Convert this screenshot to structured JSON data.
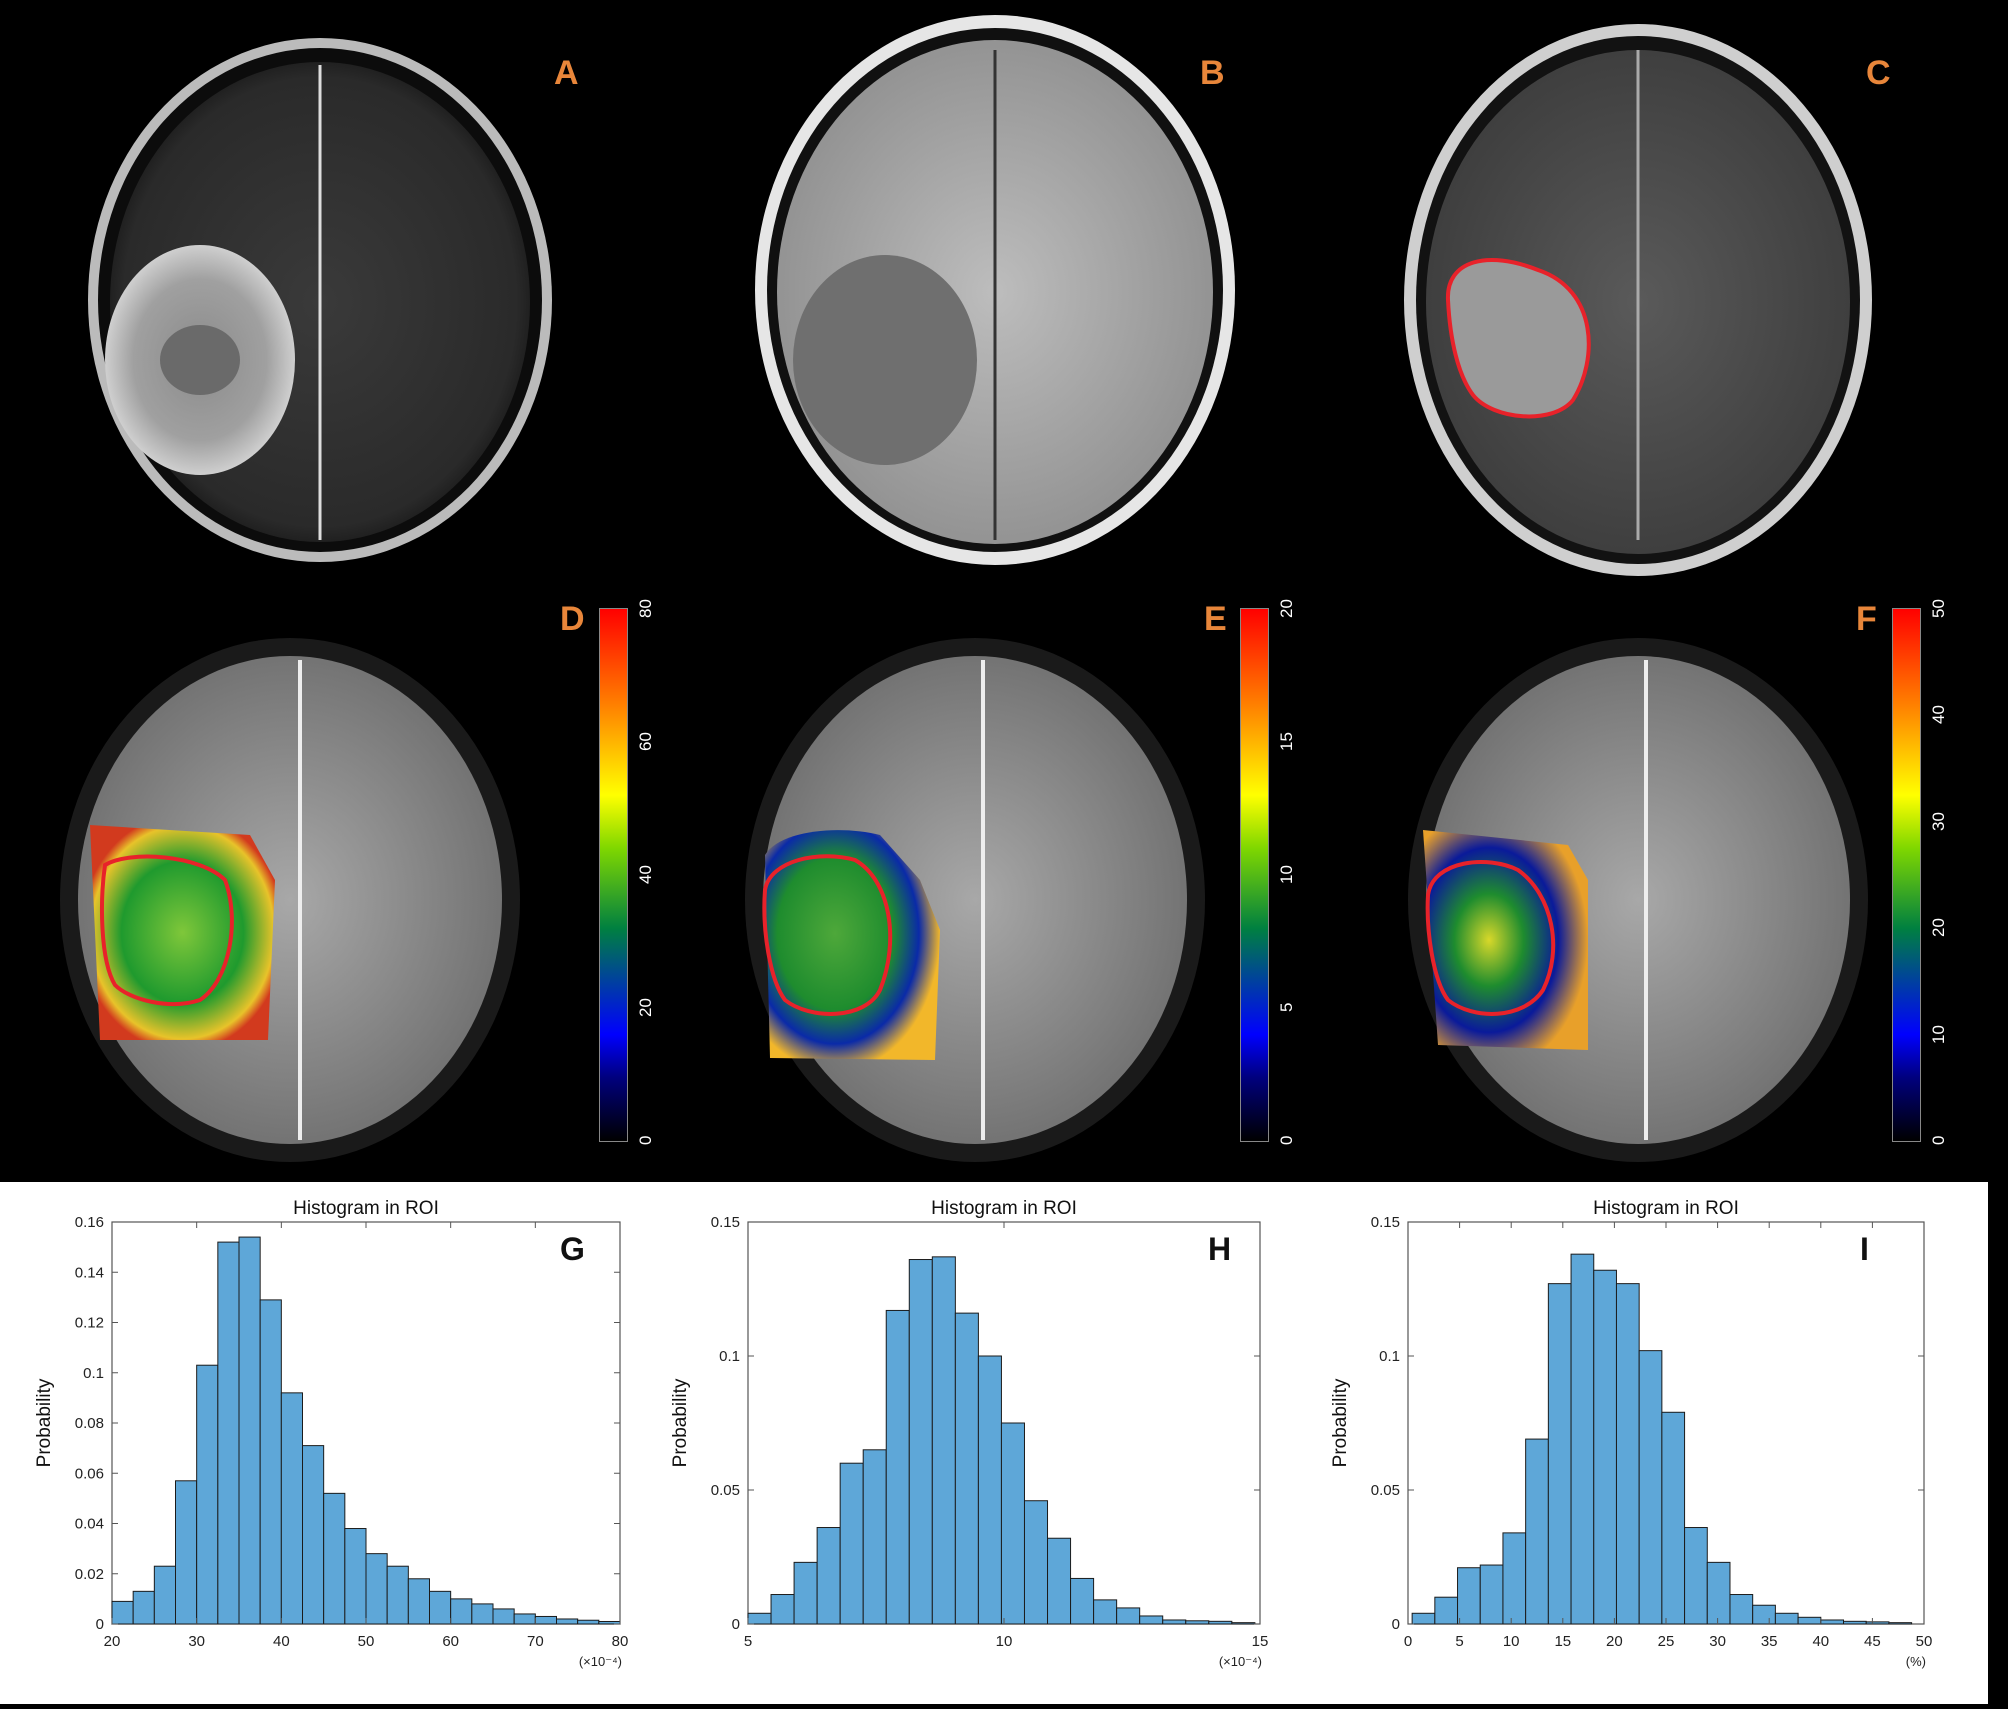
{
  "panels": {
    "A": "A",
    "B": "B",
    "C": "C",
    "D": "D",
    "E": "E",
    "F": "F",
    "G": "G",
    "H": "H",
    "I": "I"
  },
  "colorbars": [
    {
      "panel": "D",
      "ticks": [
        "80",
        "60",
        "40",
        "20",
        "0"
      ]
    },
    {
      "panel": "E",
      "ticks": [
        "20",
        "15",
        "10",
        "5",
        "0"
      ]
    },
    {
      "panel": "F",
      "ticks": [
        "50",
        "40",
        "30",
        "20",
        "10",
        "0"
      ]
    }
  ],
  "colors": {
    "panel_label": "#e8863a",
    "roi_outline": "#e8222a",
    "bar_fill": "#5ea7d8",
    "bar_edge": "#1b1b1b"
  },
  "chart_data": [
    {
      "panel": "G",
      "type": "bar",
      "title": "Histogram in ROI",
      "ylabel": "Probability",
      "xlabel": "",
      "x_unit": "(×10⁻⁴)",
      "xlim": [
        20,
        80
      ],
      "ylim": [
        0,
        0.16
      ],
      "xticks": [
        "20",
        "30",
        "40",
        "50",
        "60",
        "70",
        "80"
      ],
      "yticks": [
        "0",
        "0.02",
        "0.04",
        "0.06",
        "0.08",
        "0.1",
        "0.12",
        "0.14",
        "0.16"
      ],
      "bin_width": 2.5,
      "bin_start": 20,
      "values": [
        0.009,
        0.013,
        0.023,
        0.057,
        0.103,
        0.152,
        0.154,
        0.129,
        0.092,
        0.071,
        0.052,
        0.038,
        0.028,
        0.023,
        0.018,
        0.013,
        0.01,
        0.008,
        0.006,
        0.004,
        0.003,
        0.002,
        0.0015,
        0.001
      ]
    },
    {
      "panel": "H",
      "type": "bar",
      "title": "Histogram in ROI",
      "ylabel": "Probability",
      "xlabel": "",
      "x_unit": "(×10⁻⁴)",
      "xlim": [
        5,
        15
      ],
      "ylim": [
        0,
        0.15
      ],
      "xticks": [
        "5",
        "10",
        "15"
      ],
      "yticks": [
        "0",
        "0.05",
        "0.1",
        "0.15"
      ],
      "bin_width": 0.45,
      "bin_start": 5.0,
      "values": [
        0.004,
        0.011,
        0.023,
        0.036,
        0.06,
        0.065,
        0.117,
        0.136,
        0.137,
        0.116,
        0.1,
        0.075,
        0.046,
        0.032,
        0.017,
        0.009,
        0.006,
        0.003,
        0.0015,
        0.0012,
        0.001,
        0.0005
      ]
    },
    {
      "panel": "I",
      "type": "bar",
      "title": "Histogram in ROI",
      "ylabel": "Probability",
      "xlabel": "",
      "x_unit": "(%)",
      "xlim": [
        0,
        50
      ],
      "ylim": [
        0,
        0.15
      ],
      "xticks": [
        "0",
        "5",
        "10",
        "15",
        "20",
        "25",
        "30",
        "35",
        "40",
        "45",
        "50"
      ],
      "yticks": [
        "0",
        "0.05",
        "0.1",
        "0.15"
      ],
      "bin_width": 2.2,
      "bin_start": 0.4,
      "values": [
        0.004,
        0.01,
        0.021,
        0.022,
        0.034,
        0.069,
        0.127,
        0.138,
        0.132,
        0.127,
        0.102,
        0.079,
        0.036,
        0.023,
        0.011,
        0.007,
        0.004,
        0.0025,
        0.0015,
        0.001,
        0.0008,
        0.0005
      ]
    }
  ]
}
